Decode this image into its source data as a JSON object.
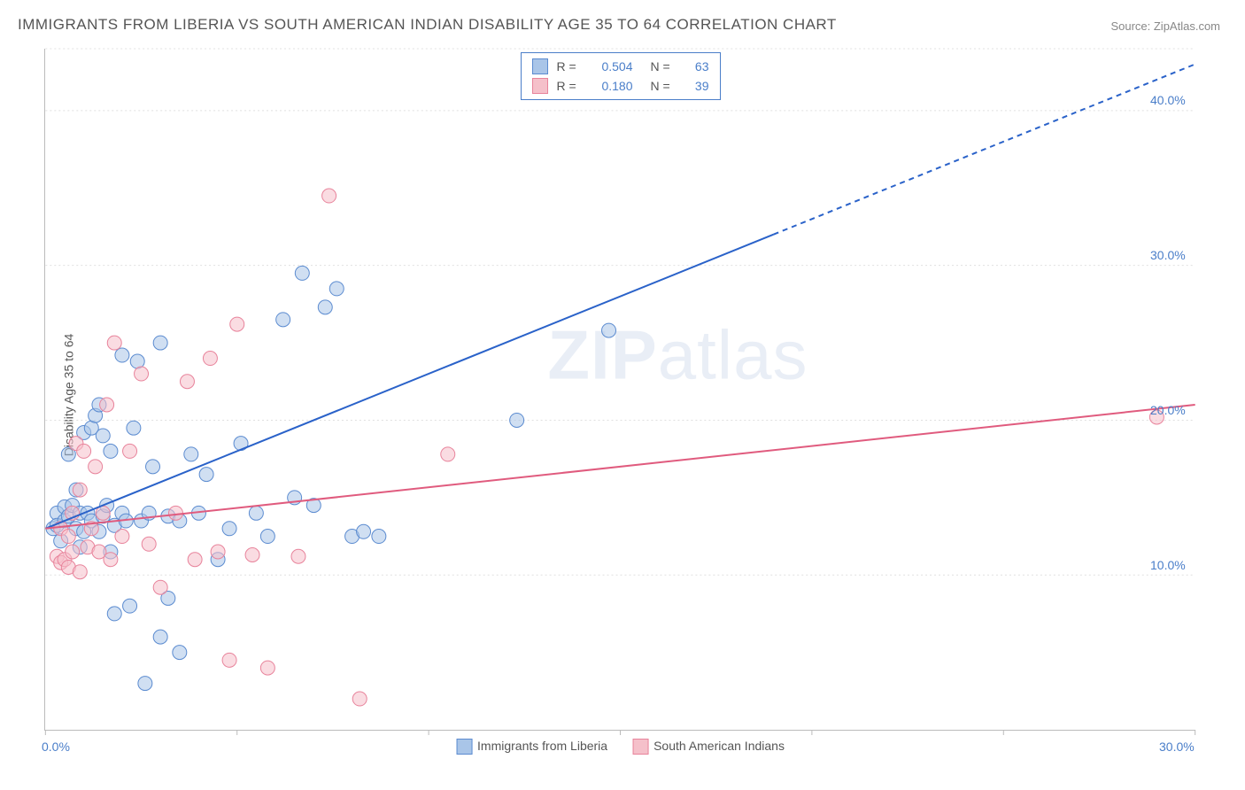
{
  "title": "IMMIGRANTS FROM LIBERIA VS SOUTH AMERICAN INDIAN DISABILITY AGE 35 TO 64 CORRELATION CHART",
  "source": "Source: ZipAtlas.com",
  "ylabel": "Disability Age 35 to 64",
  "watermark_bold": "ZIP",
  "watermark_rest": "atlas",
  "chart": {
    "type": "scatter-with-trendlines",
    "background_color": "#ffffff",
    "grid_color": "#e0e0e0",
    "grid_dash": "2,3",
    "axis_color": "#bbbbbb",
    "tick_label_color": "#4a7ec9",
    "xlim": [
      0,
      30
    ],
    "ylim": [
      0,
      44
    ],
    "x_ticks": [
      0,
      5,
      10,
      15,
      20,
      25,
      30
    ],
    "x_tick_labels": [
      "0.0%",
      "",
      "",
      "",
      "",
      "",
      "30.0%"
    ],
    "y_gridlines": [
      10,
      20,
      30,
      40,
      44
    ],
    "y_gridline_labels": [
      "10.0%",
      "20.0%",
      "30.0%",
      "40.0%",
      ""
    ],
    "point_radius": 8,
    "point_opacity": 0.55,
    "series": [
      {
        "key": "liberia",
        "name": "Immigrants from Liberia",
        "fill": "#a9c5e8",
        "stroke": "#5b8bd0",
        "R": "0.504",
        "N": "63",
        "trend": {
          "x1": 0,
          "y1": 13.0,
          "x2": 30,
          "y2": 43.0,
          "solid_until_x": 19,
          "stroke": "#2a62c9",
          "width": 2
        },
        "points": [
          [
            0.2,
            13.0
          ],
          [
            0.3,
            14.0
          ],
          [
            0.3,
            13.2
          ],
          [
            0.4,
            12.2
          ],
          [
            0.5,
            14.4
          ],
          [
            0.5,
            13.5
          ],
          [
            0.6,
            13.8
          ],
          [
            0.6,
            17.8
          ],
          [
            0.7,
            14.5
          ],
          [
            0.8,
            13.0
          ],
          [
            0.8,
            15.5
          ],
          [
            0.9,
            11.8
          ],
          [
            0.9,
            14.0
          ],
          [
            1.0,
            19.2
          ],
          [
            1.0,
            12.8
          ],
          [
            1.1,
            14.0
          ],
          [
            1.2,
            19.5
          ],
          [
            1.2,
            13.5
          ],
          [
            1.3,
            20.3
          ],
          [
            1.4,
            12.8
          ],
          [
            1.4,
            21.0
          ],
          [
            1.5,
            19.0
          ],
          [
            1.5,
            13.8
          ],
          [
            1.6,
            14.5
          ],
          [
            1.7,
            11.5
          ],
          [
            1.7,
            18.0
          ],
          [
            1.8,
            13.2
          ],
          [
            1.8,
            7.5
          ],
          [
            2.0,
            14.0
          ],
          [
            2.0,
            24.2
          ],
          [
            2.1,
            13.5
          ],
          [
            2.2,
            8.0
          ],
          [
            2.3,
            19.5
          ],
          [
            2.4,
            23.8
          ],
          [
            2.5,
            13.5
          ],
          [
            2.6,
            3.0
          ],
          [
            2.7,
            14.0
          ],
          [
            2.8,
            17.0
          ],
          [
            3.0,
            25.0
          ],
          [
            3.0,
            6.0
          ],
          [
            3.2,
            13.8
          ],
          [
            3.2,
            8.5
          ],
          [
            3.5,
            13.5
          ],
          [
            3.5,
            5.0
          ],
          [
            3.8,
            17.8
          ],
          [
            4.0,
            14.0
          ],
          [
            4.2,
            16.5
          ],
          [
            4.5,
            11.0
          ],
          [
            4.8,
            13.0
          ],
          [
            5.1,
            18.5
          ],
          [
            5.5,
            14.0
          ],
          [
            5.8,
            12.5
          ],
          [
            6.2,
            26.5
          ],
          [
            6.5,
            15.0
          ],
          [
            6.7,
            29.5
          ],
          [
            7.0,
            14.5
          ],
          [
            7.3,
            27.3
          ],
          [
            7.6,
            28.5
          ],
          [
            8.0,
            12.5
          ],
          [
            8.3,
            12.8
          ],
          [
            8.7,
            12.5
          ],
          [
            12.3,
            20.0
          ],
          [
            14.7,
            25.8
          ]
        ]
      },
      {
        "key": "sai",
        "name": "South American Indians",
        "fill": "#f5c0ca",
        "stroke": "#e8839b",
        "R": "0.180",
        "N": "39",
        "trend": {
          "x1": 0,
          "y1": 13.0,
          "x2": 30,
          "y2": 21.0,
          "solid_until_x": 30,
          "stroke": "#e05b7e",
          "width": 2
        },
        "points": [
          [
            0.3,
            11.2
          ],
          [
            0.4,
            10.8
          ],
          [
            0.4,
            13.0
          ],
          [
            0.5,
            11.0
          ],
          [
            0.6,
            10.5
          ],
          [
            0.6,
            12.5
          ],
          [
            0.7,
            11.5
          ],
          [
            0.7,
            14.0
          ],
          [
            0.8,
            18.5
          ],
          [
            0.9,
            10.2
          ],
          [
            0.9,
            15.5
          ],
          [
            1.0,
            18.0
          ],
          [
            1.1,
            11.8
          ],
          [
            1.2,
            13.0
          ],
          [
            1.3,
            17.0
          ],
          [
            1.4,
            11.5
          ],
          [
            1.5,
            14.0
          ],
          [
            1.6,
            21.0
          ],
          [
            1.7,
            11.0
          ],
          [
            1.8,
            25.0
          ],
          [
            2.0,
            12.5
          ],
          [
            2.2,
            18.0
          ],
          [
            2.5,
            23.0
          ],
          [
            2.7,
            12.0
          ],
          [
            3.0,
            9.2
          ],
          [
            3.4,
            14.0
          ],
          [
            3.7,
            22.5
          ],
          [
            3.9,
            11.0
          ],
          [
            4.3,
            24.0
          ],
          [
            4.5,
            11.5
          ],
          [
            4.8,
            4.5
          ],
          [
            5.0,
            26.2
          ],
          [
            5.4,
            11.3
          ],
          [
            5.8,
            4.0
          ],
          [
            6.6,
            11.2
          ],
          [
            7.4,
            34.5
          ],
          [
            8.2,
            2.0
          ],
          [
            10.5,
            17.8
          ],
          [
            29.0,
            20.2
          ]
        ]
      }
    ],
    "legend_top": {
      "border_color": "#4a7ec9",
      "rows": [
        {
          "series_key": "liberia"
        },
        {
          "series_key": "sai"
        }
      ]
    }
  }
}
